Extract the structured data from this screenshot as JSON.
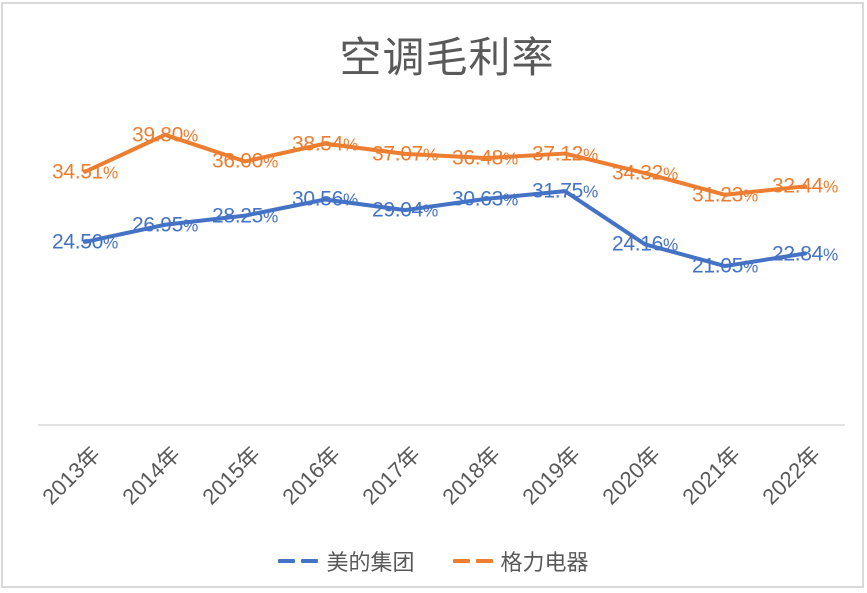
{
  "chart_data": {
    "type": "line",
    "title": "空调毛利率",
    "categories": [
      "2013年",
      "2014年",
      "2015年",
      "2016年",
      "2017年",
      "2018年",
      "2019年",
      "2020年",
      "2021年",
      "2022年"
    ],
    "series": [
      {
        "name": "美的集团",
        "color": "#4472C4",
        "values": [
          24.5,
          26.95,
          28.25,
          30.56,
          29.04,
          30.63,
          31.75,
          24.16,
          21.05,
          22.84
        ],
        "labels": [
          "24.50%",
          "26.95%",
          "28.25%",
          "30.56%",
          "29.04%",
          "30.63%",
          "31.75%",
          "24.16%",
          "21.05%",
          "22.84%"
        ]
      },
      {
        "name": "格力电器",
        "color": "#ED7D31",
        "values": [
          34.51,
          39.8,
          36.0,
          38.54,
          37.07,
          36.48,
          37.12,
          34.32,
          31.23,
          32.44
        ],
        "labels": [
          "34.51%",
          "39.80%",
          "36.00%",
          "38.54%",
          "37.07%",
          "36.48%",
          "37.12%",
          "34.32%",
          "31.23%",
          "32.44%"
        ]
      }
    ],
    "data_labels_position": "center",
    "legend_position": "bottom",
    "gridlines": false,
    "y_axis_visible": false,
    "ylim_implied": [
      0,
      45
    ],
    "x_label_rotation_deg": 45
  },
  "colors": {
    "title_text": "#595959",
    "axis_text": "#595959",
    "axis_line": "#D9D9D9",
    "frame_border": "#D9D9D9",
    "background": "#FFFFFF"
  }
}
